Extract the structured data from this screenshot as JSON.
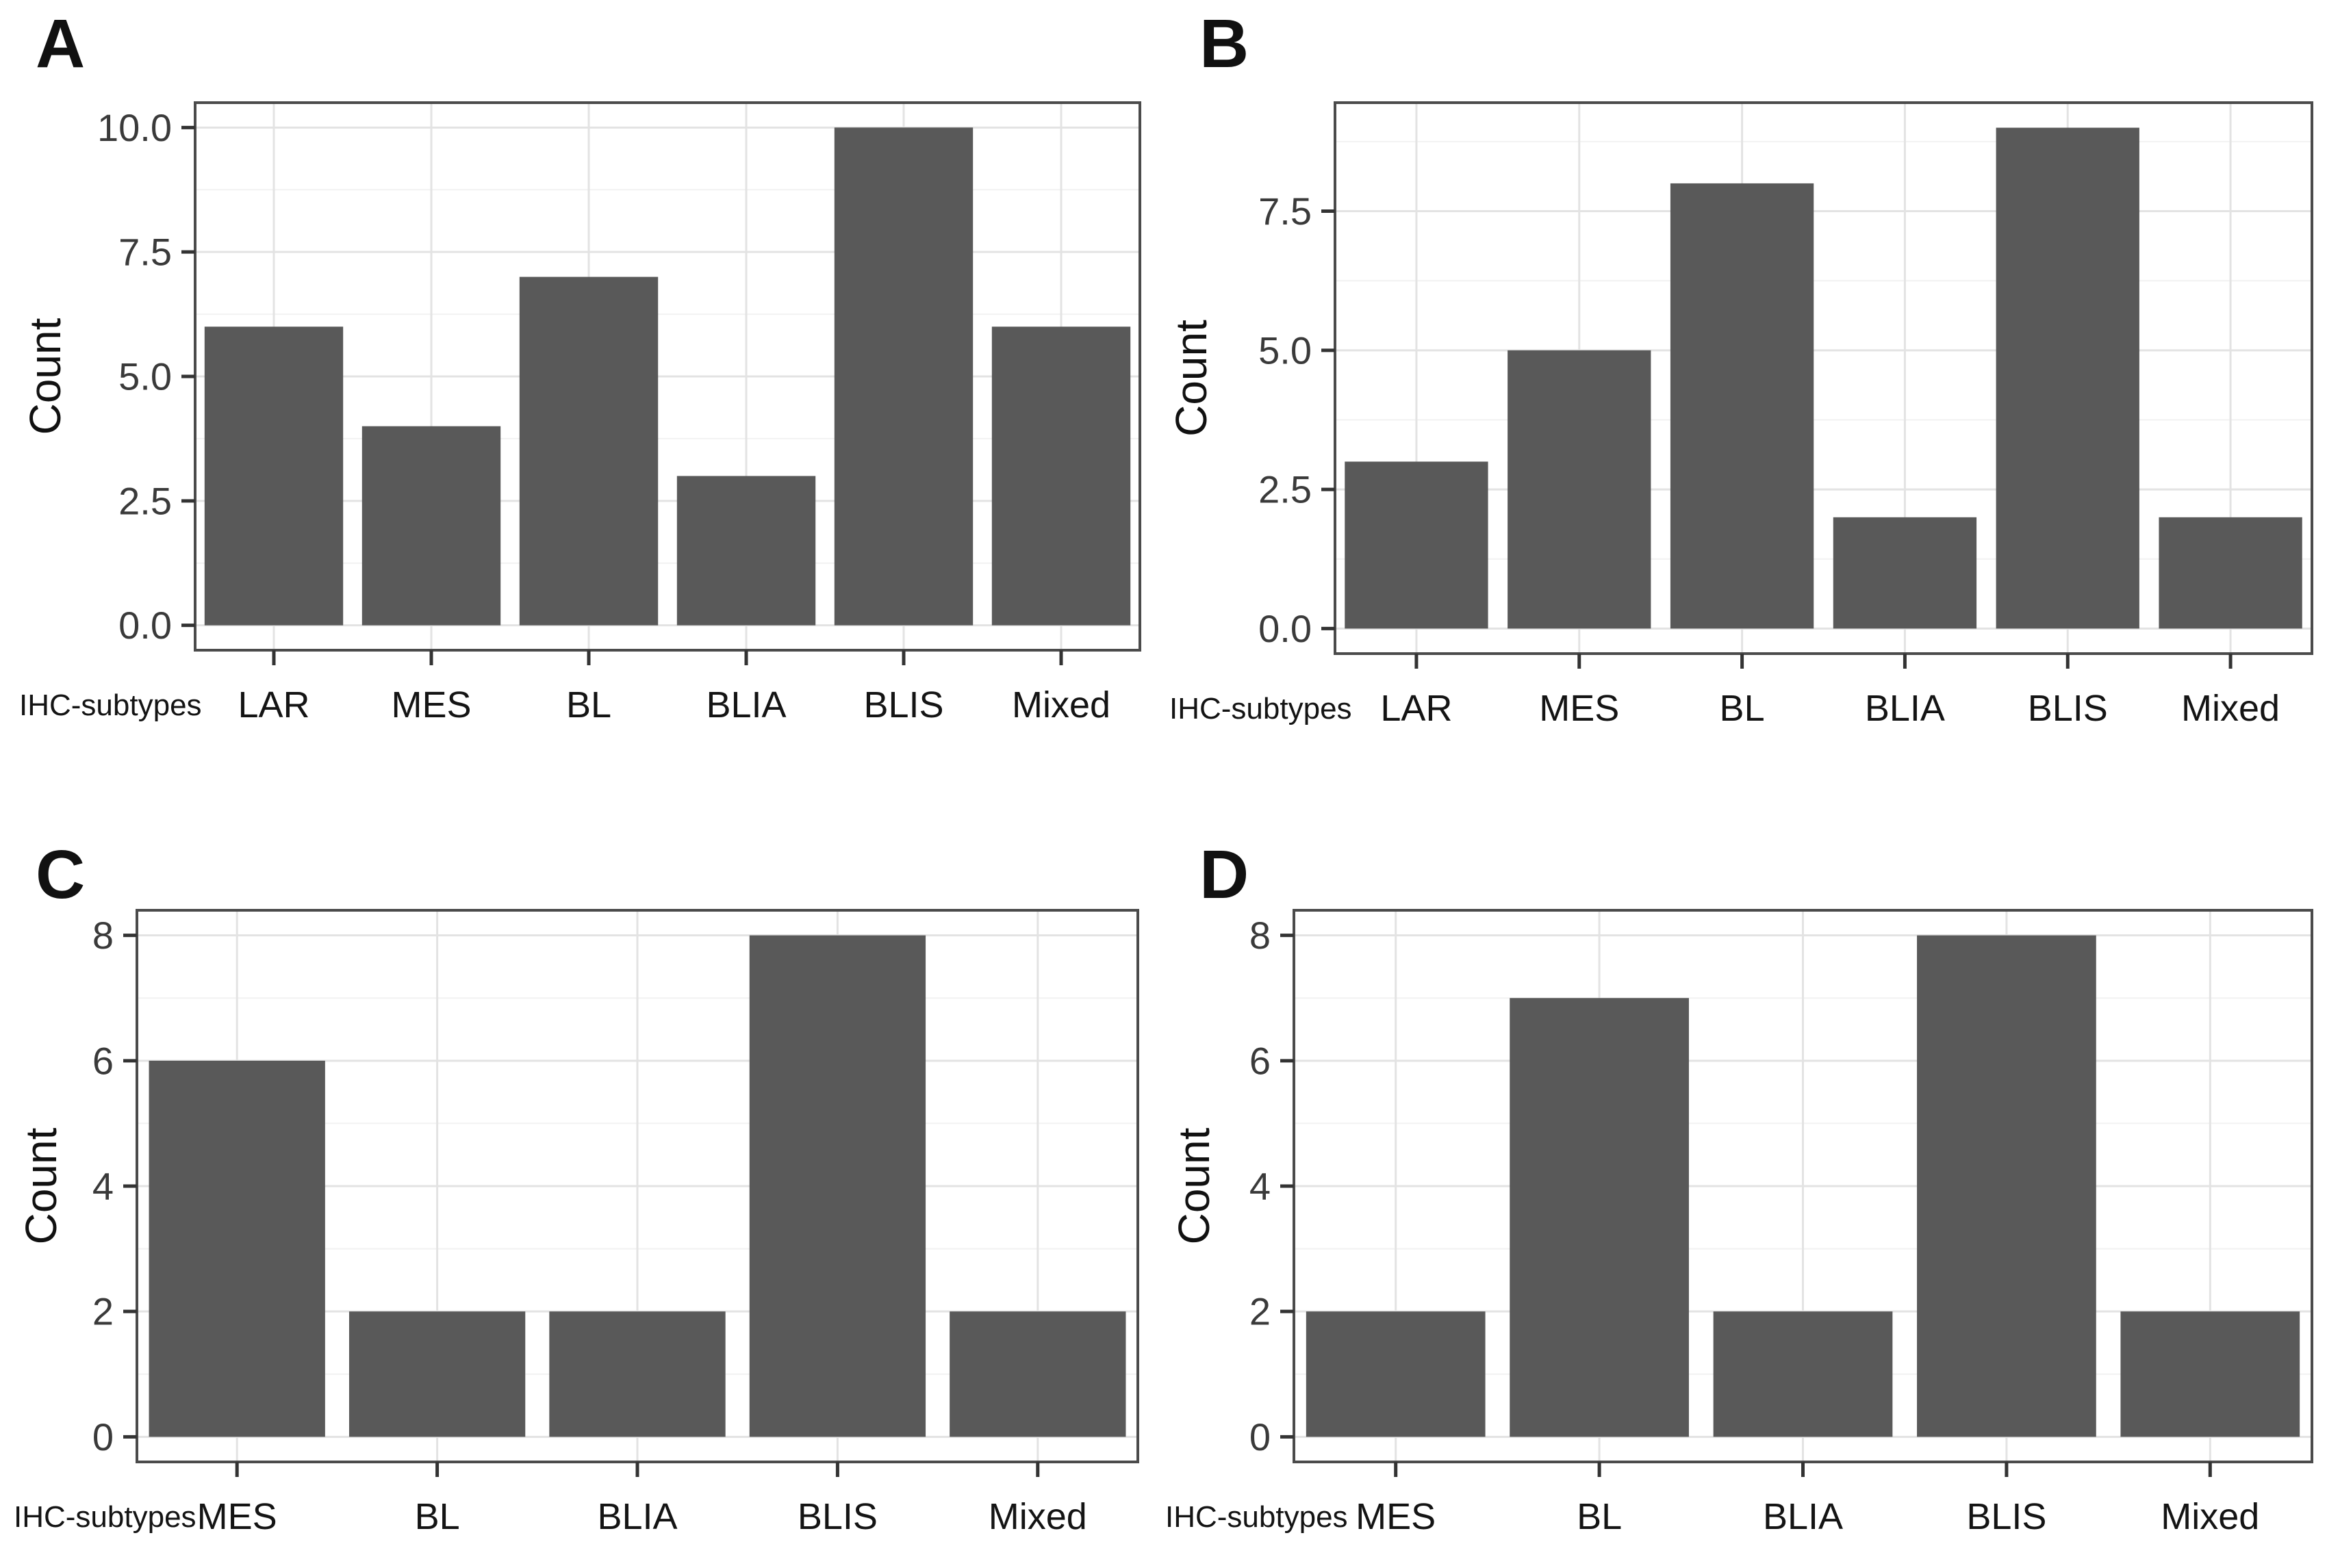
{
  "figure": {
    "background": "#ffffff",
    "bar_color": "#595959",
    "panel_border_color": "#4b4b4b",
    "grid_major_color": "#e3e3e3",
    "grid_minor_color": "#f2f2f2",
    "tick_mark_color": "#333333",
    "y_tick_text_color": "#3a3a3a",
    "x_tick_text_color": "#141414",
    "axis_title_color": "#111111"
  },
  "chart_data": [
    {
      "panel_label": "A",
      "type": "bar",
      "categories": [
        "LAR",
        "MES",
        "BL",
        "BLIA",
        "BLIS",
        "Mixed"
      ],
      "values": [
        6,
        4,
        7,
        3,
        10,
        6
      ],
      "title": "",
      "xlabel": "IHC-subtypes",
      "ylabel": "Count",
      "y_ticks": [
        0,
        2.5,
        5,
        7.5,
        10
      ],
      "y_tick_labels": [
        "0.0",
        "2.5",
        "5.0",
        "7.5",
        "10.0"
      ],
      "ylim": [
        -0.5,
        10.5
      ],
      "grid": "major+minor",
      "legend": "none"
    },
    {
      "panel_label": "B",
      "type": "bar",
      "categories": [
        "LAR",
        "MES",
        "BL",
        "BLIA",
        "BLIS",
        "Mixed"
      ],
      "values": [
        3,
        5,
        8,
        2,
        9,
        2
      ],
      "title": "",
      "xlabel": "IHC-subtypes",
      "ylabel": "Count",
      "y_ticks": [
        0,
        2.5,
        5,
        7.5
      ],
      "y_tick_labels": [
        "0.0",
        "2.5",
        "5.0",
        "7.5"
      ],
      "ylim": [
        -0.45,
        9.45
      ],
      "grid": "major+minor",
      "legend": "none"
    },
    {
      "panel_label": "C",
      "type": "bar",
      "categories": [
        "MES",
        "BL",
        "BLIA",
        "BLIS",
        "Mixed"
      ],
      "values": [
        6,
        2,
        2,
        8,
        2
      ],
      "title": "",
      "xlabel": "IHC-subtypes",
      "ylabel": "Count",
      "y_ticks": [
        0,
        2,
        4,
        6,
        8
      ],
      "y_tick_labels": [
        "0",
        "2",
        "4",
        "6",
        "8"
      ],
      "ylim": [
        -0.4,
        8.4
      ],
      "grid": "major+minor",
      "legend": "none"
    },
    {
      "panel_label": "D",
      "type": "bar",
      "categories": [
        "MES",
        "BL",
        "BLIA",
        "BLIS",
        "Mixed"
      ],
      "values": [
        2,
        7,
        2,
        8,
        2
      ],
      "title": "",
      "xlabel": "IHC-subtypes",
      "ylabel": "Count",
      "y_ticks": [
        0,
        2,
        4,
        6,
        8
      ],
      "y_tick_labels": [
        "0",
        "2",
        "4",
        "6",
        "8"
      ],
      "ylim": [
        -0.4,
        8.4
      ],
      "grid": "major+minor",
      "legend": "none"
    }
  ]
}
